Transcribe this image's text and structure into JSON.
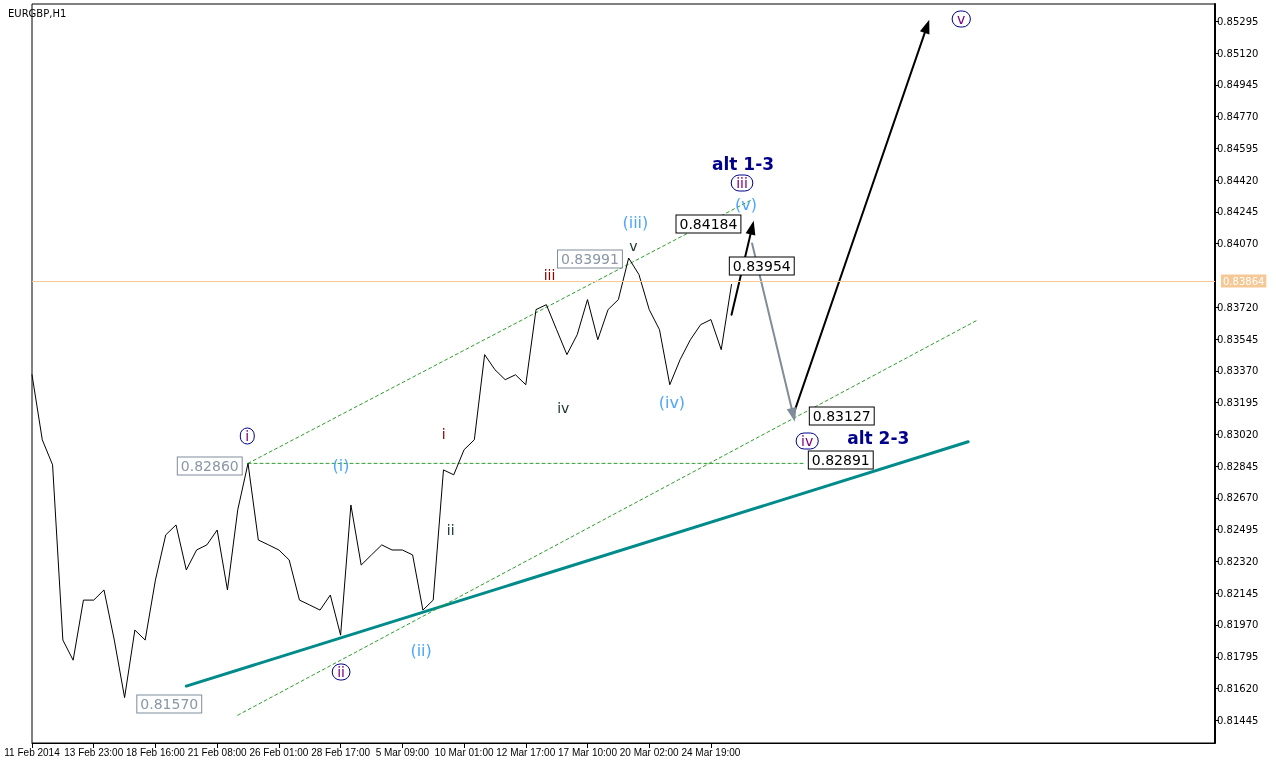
{
  "chart_data": {
    "type": "line",
    "title": "EURGBP,H1",
    "categories": [
      "11 Feb 2014",
      null,
      null,
      null,
      null,
      null,
      "13 Feb 23:00",
      null,
      null,
      null,
      null,
      null,
      "18 Feb 16:00",
      null,
      null,
      null,
      null,
      null,
      "21 Feb 08:00",
      null,
      null,
      null,
      null,
      null,
      "26 Feb 01:00",
      null,
      null,
      null,
      null,
      null,
      "28 Feb 17:00",
      null,
      null,
      null,
      null,
      null,
      "5 Mar 09:00",
      null,
      null,
      null,
      null,
      null,
      "10 Mar 01:00",
      null,
      null,
      null,
      null,
      null,
      "12 Mar 17:00",
      null,
      null,
      null,
      null,
      null,
      "17 Mar 10:00",
      null,
      null,
      null,
      null,
      null,
      "20 Mar 02:00",
      null,
      null,
      null,
      null,
      null,
      "24 Mar 19:00",
      null,
      null,
      null,
      null,
      null,
      null,
      null,
      null,
      null,
      null,
      null,
      null,
      null,
      null,
      null,
      null,
      null,
      null,
      null,
      null,
      null,
      null,
      null,
      null,
      null,
      null,
      null,
      null,
      null,
      null,
      null,
      null,
      null,
      null,
      null,
      null,
      null,
      null,
      null,
      null,
      null,
      null,
      null,
      null,
      null,
      null,
      null,
      null,
      null
    ],
    "ylim": [
      0.8132,
      0.8539
    ],
    "yticks": [
      {
        "value": 0.85295,
        "label": "0.85295"
      },
      {
        "value": 0.8512,
        "label": "0.85120"
      },
      {
        "value": 0.84945,
        "label": "0.84945"
      },
      {
        "value": 0.8477,
        "label": "0.84770"
      },
      {
        "value": 0.84595,
        "label": "0.84595"
      },
      {
        "value": 0.8442,
        "label": "0.84420"
      },
      {
        "value": 0.84245,
        "label": "0.84245"
      },
      {
        "value": 0.8407,
        "label": "0.84070"
      },
      {
        "value": 0.8372,
        "label": "0.83720"
      },
      {
        "value": 0.83545,
        "label": "0.83545"
      },
      {
        "value": 0.8337,
        "label": "0.83370"
      },
      {
        "value": 0.83195,
        "label": "0.83195"
      },
      {
        "value": 0.8302,
        "label": "0.83020"
      },
      {
        "value": 0.82845,
        "label": "0.82845"
      },
      {
        "value": 0.8267,
        "label": "0.82670"
      },
      {
        "value": 0.82495,
        "label": "0.82495"
      },
      {
        "value": 0.8232,
        "label": "0.82320"
      },
      {
        "value": 0.82145,
        "label": "0.82145"
      },
      {
        "value": 0.8197,
        "label": "0.81970"
      },
      {
        "value": 0.81795,
        "label": "0.81795"
      },
      {
        "value": 0.8162,
        "label": "0.81620"
      },
      {
        "value": 0.81445,
        "label": "0.81445"
      }
    ],
    "ref_lines": [
      {
        "axis": "y",
        "value": 0.83864,
        "label": "0.83864",
        "color": "#f5c896",
        "line_style": "solid"
      }
    ],
    "series": [
      {
        "color": "#000000",
        "line_style": "solid",
        "values": [
          0.83348,
          0.8299,
          0.82852,
          0.81887,
          0.81776,
          0.82107,
          0.82107,
          0.82163,
          0.81887,
          0.8157,
          0.81942,
          0.81887,
          0.82218,
          0.82466,
          0.82521,
          0.82273,
          0.82383,
          0.82411,
          0.82493,
          0.82163,
          0.82604,
          0.8286,
          0.82438,
          0.82411,
          0.82383,
          0.82328,
          0.82107,
          0.8208,
          0.82052,
          0.82135,
          0.81914,
          0.82631,
          0.823,
          0.82356,
          0.82411,
          0.82383,
          0.82383,
          0.82356,
          0.82052,
          0.82107,
          0.82824,
          0.82797,
          0.82935,
          0.8299,
          0.83459,
          0.83376,
          0.83321,
          0.83348,
          0.83293,
          0.83707,
          0.83734,
          0.83596,
          0.83459,
          0.83569,
          0.83762,
          0.83541,
          0.83707,
          0.83762,
          0.83991,
          0.839,
          0.83707,
          0.83596,
          0.83293,
          0.83431,
          0.83541,
          0.83624,
          0.83652,
          0.83486,
          0.83845,
          null,
          null,
          null,
          null,
          null,
          null,
          null,
          null,
          null,
          null,
          null,
          null,
          null,
          null,
          null,
          null,
          null,
          null,
          null,
          null,
          null,
          null,
          null,
          null,
          null,
          null,
          null,
          null,
          null,
          null,
          null,
          null,
          null,
          null,
          null,
          null,
          null,
          null,
          null,
          null,
          null,
          null,
          null,
          null,
          null,
          null,
          null
        ]
      },
      {
        "color": "#008b8b",
        "line_style": "solid",
        "values": [
          null,
          null,
          null,
          null,
          null,
          null,
          null,
          null,
          null,
          null,
          null,
          null,
          null,
          null,
          null,
          0.81633,
          null,
          null,
          null,
          null,
          null,
          null,
          null,
          null,
          null,
          null,
          null,
          null,
          null,
          null,
          null,
          null,
          null,
          null,
          null,
          null,
          null,
          null,
          null,
          null,
          null,
          null,
          null,
          null,
          null,
          null,
          null,
          null,
          null,
          null,
          null,
          null,
          null,
          null,
          null,
          null,
          null,
          null,
          null,
          null,
          null,
          null,
          null,
          null,
          null,
          null,
          null,
          null,
          null,
          null,
          null,
          null,
          null,
          null,
          null,
          null,
          null,
          null,
          null,
          null,
          null,
          null,
          null,
          null,
          null,
          null,
          null,
          null,
          null,
          null,
          null,
          0.82979,
          null,
          null,
          null,
          null,
          null,
          null,
          null,
          null,
          null,
          null,
          null,
          null,
          null,
          null,
          null,
          null,
          null,
          null,
          null,
          null,
          null,
          null,
          null,
          null
        ]
      },
      {
        "color": "#2e9e2e",
        "line_style": "dashed",
        "values": [
          null,
          null,
          null,
          null,
          null,
          null,
          null,
          null,
          null,
          null,
          null,
          null,
          null,
          null,
          null,
          null,
          null,
          null,
          null,
          null,
          null,
          0.8286,
          null,
          null,
          null,
          null,
          null,
          null,
          null,
          null,
          null,
          null,
          null,
          null,
          null,
          null,
          null,
          null,
          null,
          null,
          null,
          null,
          null,
          null,
          null,
          null,
          null,
          null,
          null,
          null,
          null,
          null,
          null,
          null,
          null,
          null,
          null,
          null,
          null,
          null,
          null,
          null,
          null,
          null,
          null,
          null,
          null,
          null,
          null,
          null,
          0.84313,
          null,
          null,
          null,
          null,
          null,
          null,
          null,
          null,
          null,
          null,
          null,
          null,
          null,
          null,
          null,
          null,
          null,
          null,
          null,
          null,
          null,
          null,
          null,
          null,
          null,
          null,
          null,
          null,
          null,
          null,
          null,
          null,
          null,
          null,
          null,
          null,
          null,
          null,
          null,
          null,
          null,
          null,
          null,
          null,
          null
        ]
      },
      {
        "color": "#2e9e2e",
        "line_style": "dashed",
        "values": [
          null,
          null,
          null,
          null,
          null,
          null,
          null,
          null,
          null,
          null,
          null,
          null,
          null,
          null,
          null,
          null,
          null,
          null,
          null,
          null,
          0.81473,
          null,
          null,
          null,
          null,
          null,
          null,
          null,
          null,
          null,
          null,
          null,
          null,
          null,
          null,
          null,
          null,
          null,
          null,
          null,
          null,
          null,
          null,
          null,
          null,
          null,
          null,
          null,
          null,
          null,
          null,
          null,
          null,
          null,
          null,
          null,
          null,
          null,
          null,
          null,
          null,
          null,
          null,
          null,
          null,
          null,
          null,
          null,
          null,
          null,
          null,
          null,
          null,
          null,
          null,
          null,
          null,
          null,
          null,
          null,
          null,
          null,
          null,
          null,
          null,
          null,
          null,
          null,
          null,
          null,
          null,
          null,
          0.83652,
          null,
          null,
          null,
          null,
          null,
          null,
          null,
          null,
          null,
          null,
          null,
          null,
          null,
          null,
          null,
          null,
          null,
          null,
          null,
          null,
          null,
          null,
          null
        ]
      },
      {
        "color": "#2e9e2e",
        "line_style": "dashed",
        "values": [
          null,
          null,
          null,
          null,
          null,
          null,
          null,
          null,
          null,
          null,
          null,
          null,
          null,
          null,
          null,
          null,
          null,
          null,
          null,
          null,
          null,
          0.8286,
          null,
          null,
          null,
          null,
          null,
          null,
          null,
          null,
          null,
          null,
          null,
          null,
          null,
          null,
          null,
          null,
          null,
          null,
          null,
          null,
          null,
          null,
          null,
          null,
          null,
          null,
          null,
          null,
          null,
          null,
          null,
          null,
          null,
          null,
          null,
          null,
          null,
          null,
          null,
          null,
          null,
          null,
          null,
          null,
          null,
          null,
          null,
          null,
          null,
          null,
          null,
          null,
          null,
          0.8286,
          null,
          null,
          null,
          null,
          null,
          null,
          null,
          null,
          null,
          null,
          null,
          null,
          null,
          null,
          null,
          null,
          null,
          null,
          null,
          null,
          null,
          null,
          null,
          null,
          null,
          null,
          null,
          null,
          null,
          null,
          null,
          null,
          null,
          null,
          null,
          null,
          null,
          null,
          null,
          null
        ]
      },
      {
        "color": "#000000",
        "line_style": "solid",
        "values": [
          null,
          null,
          null,
          null,
          null,
          null,
          null,
          null,
          null,
          null,
          null,
          null,
          null,
          null,
          null,
          null,
          null,
          null,
          null,
          null,
          null,
          null,
          null,
          null,
          null,
          null,
          null,
          null,
          null,
          null,
          null,
          null,
          null,
          null,
          null,
          null,
          null,
          null,
          null,
          null,
          null,
          null,
          null,
          null,
          null,
          null,
          null,
          null,
          null,
          null,
          null,
          null,
          null,
          null,
          null,
          null,
          null,
          null,
          null,
          null,
          null,
          null,
          null,
          null,
          null,
          null,
          null,
          null,
          0.83679,
          null,
          0.84159,
          null,
          null,
          null,
          null,
          null,
          null,
          null,
          null,
          null,
          null,
          null,
          null,
          null,
          null,
          null,
          null,
          null,
          null,
          null,
          null,
          null,
          null,
          null,
          null,
          null,
          null,
          null,
          null,
          null,
          null,
          null,
          null,
          null,
          null,
          null,
          null,
          null,
          null,
          null,
          null,
          null,
          null,
          null,
          null,
          null
        ]
      },
      {
        "color": "#7f8c9a",
        "line_style": "solid",
        "values": [
          null,
          null,
          null,
          null,
          null,
          null,
          null,
          null,
          null,
          null,
          null,
          null,
          null,
          null,
          null,
          null,
          null,
          null,
          null,
          null,
          null,
          null,
          null,
          null,
          null,
          null,
          null,
          null,
          null,
          null,
          null,
          null,
          null,
          null,
          null,
          null,
          null,
          null,
          null,
          null,
          null,
          null,
          null,
          null,
          null,
          null,
          null,
          null,
          null,
          null,
          null,
          null,
          null,
          null,
          null,
          null,
          null,
          null,
          null,
          null,
          null,
          null,
          null,
          null,
          null,
          null,
          null,
          null,
          null,
          null,
          0.84071,
          null,
          null,
          null,
          0.83127,
          null,
          null,
          null,
          null,
          null,
          null,
          null,
          null,
          null,
          null,
          null,
          null,
          null,
          null,
          null,
          null,
          null,
          null,
          null,
          null,
          null,
          null,
          null,
          null,
          null,
          null,
          null,
          null,
          null,
          null,
          null,
          null,
          null,
          null,
          null,
          null,
          null,
          null,
          null,
          null,
          null
        ]
      },
      {
        "color": "#000000",
        "line_style": "solid",
        "values": [
          null,
          null,
          null,
          null,
          null,
          null,
          null,
          null,
          null,
          null,
          null,
          null,
          null,
          null,
          null,
          null,
          null,
          null,
          null,
          null,
          null,
          null,
          null,
          null,
          null,
          null,
          null,
          null,
          null,
          null,
          null,
          null,
          null,
          null,
          null,
          null,
          null,
          null,
          null,
          null,
          null,
          null,
          null,
          null,
          null,
          null,
          null,
          null,
          null,
          null,
          null,
          null,
          null,
          null,
          null,
          null,
          null,
          null,
          null,
          null,
          null,
          null,
          null,
          null,
          null,
          null,
          null,
          null,
          null,
          null,
          null,
          null,
          null,
          null,
          0.83127,
          null,
          null,
          null,
          null,
          null,
          null,
          null,
          null,
          null,
          null,
          null,
          null,
          0.85267,
          null,
          null,
          null,
          null,
          null,
          null,
          null,
          null,
          null,
          null,
          null,
          null,
          null,
          null,
          null,
          null,
          null,
          null,
          null,
          null,
          null,
          null,
          null,
          null,
          null,
          null,
          null,
          null
        ]
      }
    ],
    "annotations": [
      "i",
      "ii",
      "iii",
      "iv",
      "v",
      "(i)",
      "(ii)",
      "(iii)",
      "(iv)",
      "(v)",
      "i",
      "iii",
      "ii",
      "iv",
      "v",
      "alt 1-3",
      "alt 2-3",
      "0.82860",
      "0.81570",
      "0.83991",
      "0.84184",
      "0.83954",
      "0.83127",
      "0.82891"
    ]
  }
}
